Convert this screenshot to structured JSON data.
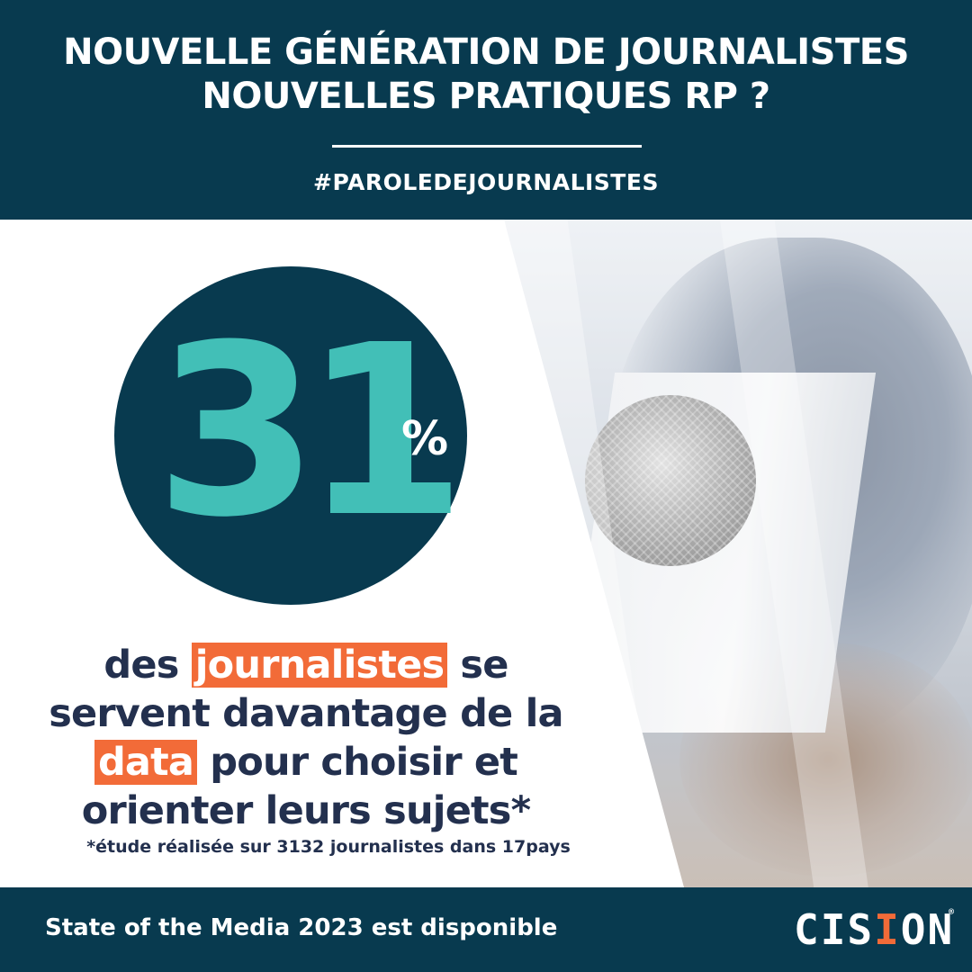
{
  "header": {
    "title_line1": "NOUVELLE GÉNÉRATION DE JOURNALISTES",
    "title_line2": "NOUVELLES PRATIQUES RP ?",
    "hashtag": "#PAROLEDEJOURNALISTES"
  },
  "stat": {
    "value": "31",
    "unit": "%"
  },
  "description": {
    "part1": "des ",
    "highlight1": "journalistes",
    "part2": " se servent davantage de la ",
    "highlight2": "data",
    "part3": " pour choisir et orienter leurs sujets*"
  },
  "footnote": "*étude réalisée sur 3132 journalistes dans 17pays",
  "footer": {
    "text": "State of the Media 2023 est disponible"
  },
  "logo": {
    "text_part1": "CIS",
    "text_accent": "I",
    "text_part2": "ON",
    "registered": "®"
  },
  "colors": {
    "navy": "#083a4f",
    "teal": "#42bfb7",
    "orange": "#f26b38",
    "text_dark": "#23304e"
  }
}
